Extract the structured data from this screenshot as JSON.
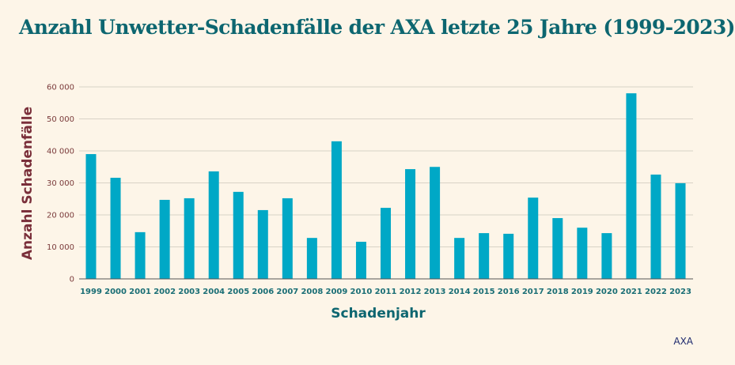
{
  "source": "AXA",
  "chart_data": {
    "type": "bar",
    "title": "Anzahl Unwetter-Schadenfälle der AXA letzte 25 Jahre (1999-2023)",
    "xlabel": "Schadenjahr",
    "ylabel": "Anzahl Schadenfälle",
    "ylim": [
      0,
      60000
    ],
    "yticks": [
      0,
      10000,
      20000,
      30000,
      40000,
      50000,
      60000
    ],
    "ytick_labels": [
      "0",
      "10 000",
      "20 000",
      "30 000",
      "40 000",
      "50 000",
      "60 000"
    ],
    "grid": true,
    "bar_color": "#00a8c6",
    "categories": [
      "1999",
      "2000",
      "2001",
      "2002",
      "2003",
      "2004",
      "2005",
      "2006",
      "2007",
      "2008",
      "2009",
      "2010",
      "2011",
      "2012",
      "2013",
      "2014",
      "2015",
      "2016",
      "2017",
      "2018",
      "2019",
      "2020",
      "2021",
      "2022",
      "2023"
    ],
    "values": [
      39000,
      31600,
      14600,
      24700,
      25200,
      33600,
      27200,
      21500,
      25200,
      12800,
      43000,
      11600,
      22200,
      34300,
      35000,
      12800,
      14300,
      14100,
      25400,
      19000,
      16000,
      14300,
      58000,
      32600,
      29900
    ]
  }
}
